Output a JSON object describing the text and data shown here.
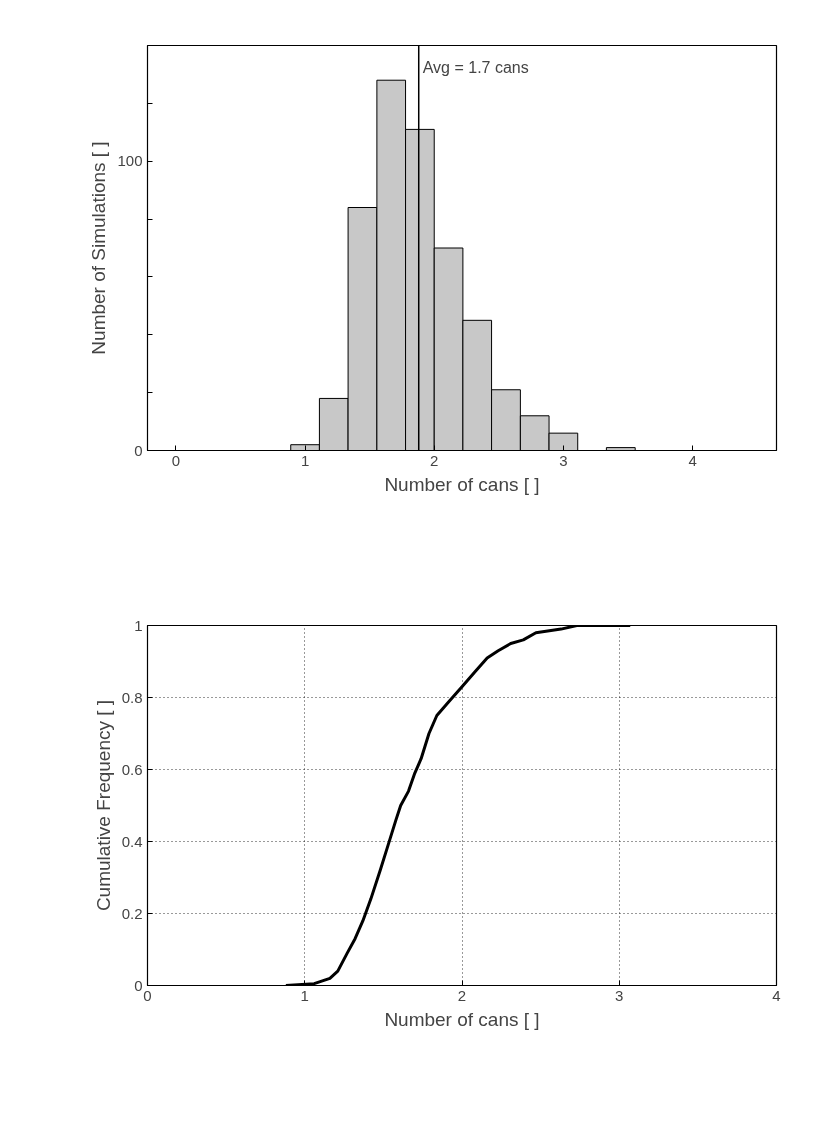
{
  "chart_data": [
    {
      "type": "histogram",
      "xlabel": "Number of cans [ ]",
      "ylabel": "Number of Simulations [ ]",
      "bins": [
        0.889,
        1.111,
        1.333,
        1.556,
        1.778,
        2.0,
        2.222,
        2.444,
        2.667,
        2.889,
        3.111,
        3.333,
        3.556
      ],
      "values": [
        2,
        18,
        84,
        128,
        111,
        70,
        45,
        21,
        12,
        6,
        0,
        1
      ],
      "color": "#c8c8c8",
      "xlim": [
        -0.22,
        4.65
      ],
      "xticks": [
        0,
        1,
        2,
        3,
        4
      ],
      "ylim": [
        0,
        140
      ],
      "yticks": [
        0,
        {
          "value": 20,
          "label": null
        },
        {
          "value": 40,
          "label": null
        },
        {
          "value": 60,
          "label": null
        },
        {
          "value": 80,
          "label": null
        },
        100,
        {
          "value": 120,
          "label": null
        }
      ],
      "ref_lines": [
        {
          "axis": "x",
          "value": 1.88
        }
      ],
      "annotations": [
        "Avg = 1.7  cans"
      ],
      "grid": false
    },
    {
      "type": "line",
      "xlabel": "Number of cans [ ]",
      "ylabel": "Cumulative Frequency [ ]",
      "x": [
        0.88,
        1.06,
        1.16,
        1.21,
        1.27,
        1.32,
        1.37,
        1.42,
        1.48,
        1.53,
        1.58,
        1.61,
        1.66,
        1.7,
        1.74,
        1.79,
        1.84,
        1.92,
        2.0,
        2.08,
        2.16,
        2.23,
        2.31,
        2.39,
        2.47,
        2.63,
        2.73,
        3.07
      ],
      "series": [
        {
          "color": "#000000",
          "values": [
            0,
            0.005,
            0.02,
            0.04,
            0.09,
            0.13,
            0.18,
            0.24,
            0.32,
            0.39,
            0.46,
            0.5,
            0.54,
            0.59,
            0.63,
            0.7,
            0.75,
            0.79,
            0.83,
            0.87,
            0.91,
            0.93,
            0.95,
            0.96,
            0.98,
            0.99,
            1.0,
            1.0
          ]
        }
      ],
      "xlim": [
        0,
        4
      ],
      "xticks": [
        0,
        1,
        2,
        3,
        4
      ],
      "ylim": [
        0,
        1
      ],
      "yticks": [
        0,
        0.2,
        0.4,
        0.6,
        0.8,
        1
      ],
      "grid": true,
      "line_style": "solid",
      "marker": "none"
    }
  ]
}
